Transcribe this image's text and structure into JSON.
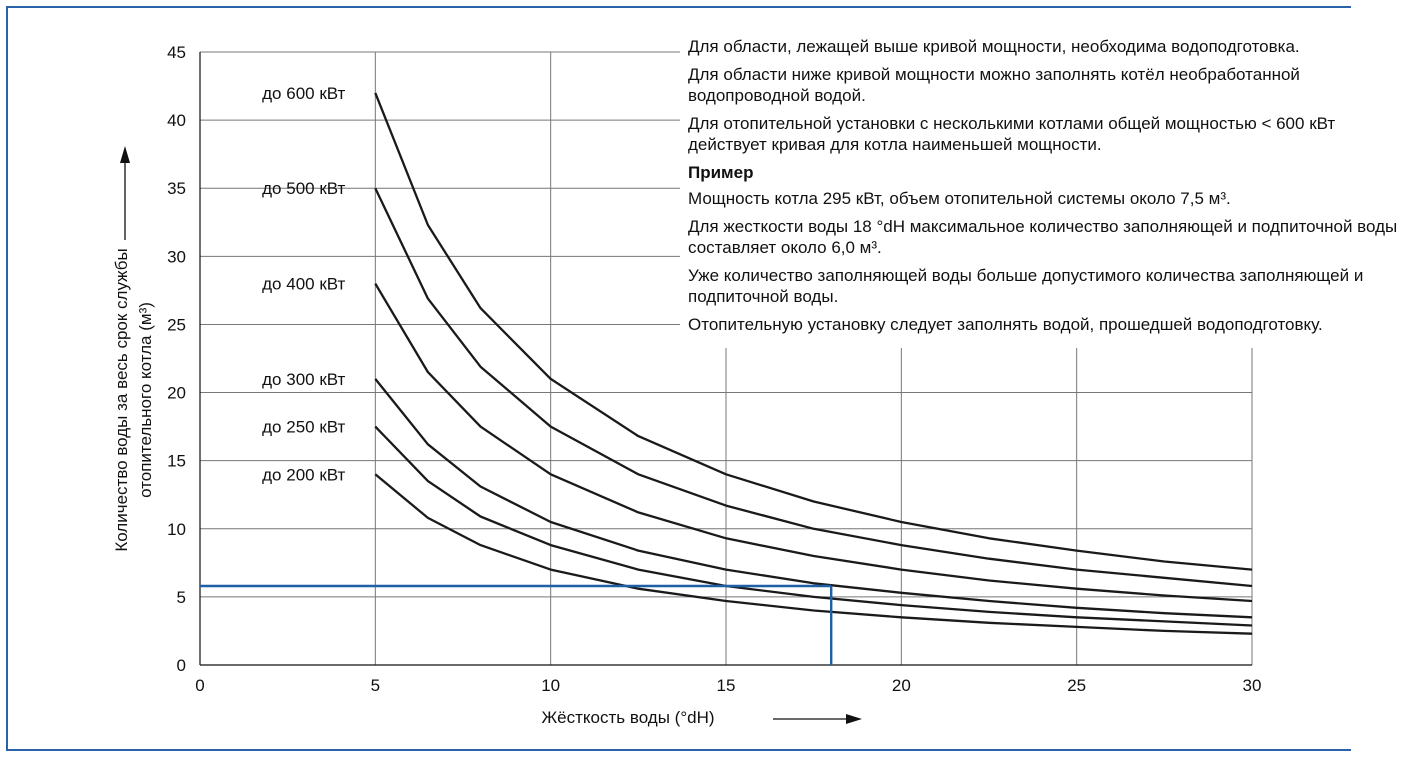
{
  "chart_data": {
    "type": "line",
    "xlabel": "Жёсткость воды (°dH)",
    "ylabel_line1": "Количество воды за весь срок службы",
    "ylabel_line2": "отопительного котла (м³)",
    "xlim": [
      0,
      30
    ],
    "ylim": [
      0,
      45
    ],
    "xticks": [
      0,
      5,
      10,
      15,
      20,
      25,
      30
    ],
    "yticks": [
      0,
      5,
      10,
      15,
      20,
      25,
      30,
      35,
      40,
      45
    ],
    "grid": true,
    "x": [
      5,
      6.5,
      8,
      10,
      12.5,
      15,
      17.5,
      20,
      22.5,
      25,
      27.5,
      30
    ],
    "series": [
      {
        "name": "до 600 кВт",
        "values": [
          42,
          32.3,
          26.2,
          21,
          16.8,
          14,
          12,
          10.5,
          9.3,
          8.4,
          7.6,
          7
        ]
      },
      {
        "name": "до 500 кВт",
        "values": [
          35,
          26.9,
          21.9,
          17.5,
          14,
          11.7,
          10,
          8.8,
          7.8,
          7,
          6.4,
          5.8
        ]
      },
      {
        "name": "до 400 кВт",
        "values": [
          28,
          21.5,
          17.5,
          14,
          11.2,
          9.3,
          8,
          7,
          6.2,
          5.6,
          5.1,
          4.7
        ]
      },
      {
        "name": "до 300 кВт",
        "values": [
          21,
          16.2,
          13.1,
          10.5,
          8.4,
          7,
          6,
          5.3,
          4.7,
          4.2,
          3.8,
          3.5
        ]
      },
      {
        "name": "до 250 кВт",
        "values": [
          17.5,
          13.5,
          10.9,
          8.8,
          7,
          5.8,
          5,
          4.4,
          3.9,
          3.5,
          3.2,
          2.9
        ]
      },
      {
        "name": "до 200 кВт",
        "values": [
          14,
          10.8,
          8.8,
          7,
          5.6,
          4.7,
          4,
          3.5,
          3.1,
          2.8,
          2.5,
          2.3
        ]
      }
    ],
    "example": {
      "x": 18,
      "y": 5.8,
      "color": "#1f5fa8"
    },
    "line_color": "#1a1a1a",
    "grid_color": "#777777"
  },
  "notes": {
    "p1": "Для области, лежащей выше кривой мощности, необходима водоподготовка.",
    "p2": "Для области ниже кривой мощности можно заполнять котёл необработанной водопроводной водой.",
    "p3": "Для отопительной установки с несколькими котлами общей мощностью < 600 кВт действует кривая для котла наименьшей мощности.",
    "heading": "Пример",
    "p4": "Мощность котла 295 кВт, объем отопительной системы около 7,5 м³.",
    "p5": "Для жесткости воды 18 °dH максимальное количество заполняющей и подпиточной воды составляет около 6,0 м³.",
    "p6": "Уже количество заполняющей воды больше допустимого количества заполняющей и подпиточной воды.",
    "p7": "Отопительную установку следует заполнять водой, прошедшей водоподготовку."
  }
}
